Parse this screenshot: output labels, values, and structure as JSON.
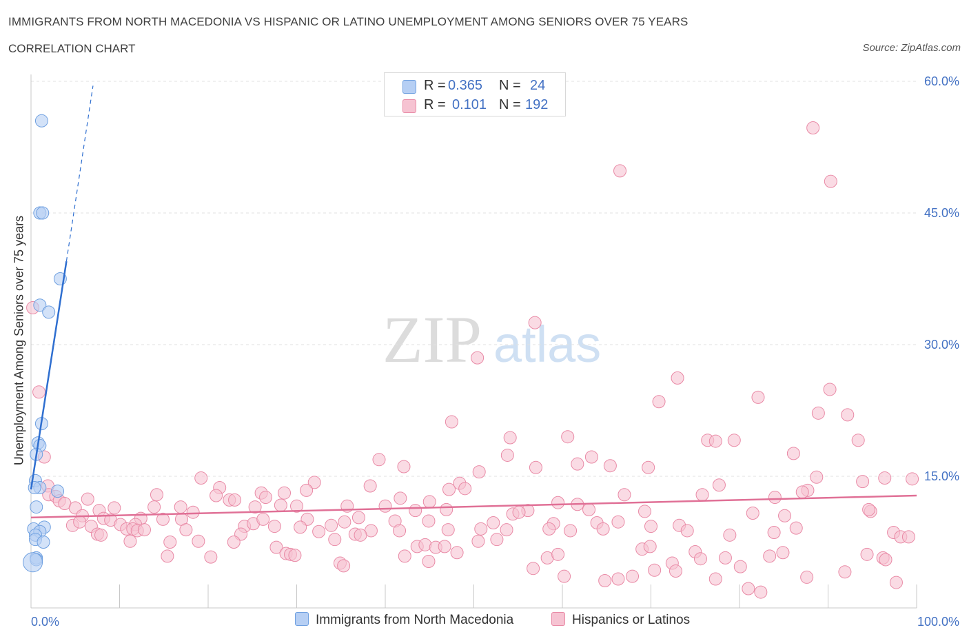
{
  "chart_data": {
    "type": "scatter",
    "title": "IMMIGRANTS FROM NORTH MACEDONIA VS HISPANIC OR LATINO UNEMPLOYMENT AMONG SENIORS OVER 75 YEARS",
    "subtitle": "CORRELATION CHART",
    "source": "Source: ZipAtlas.com",
    "xlabel": "",
    "ylabel": "Unemployment Among Seniors over 75 years",
    "xlim": [
      0,
      100
    ],
    "ylim": [
      0,
      60
    ],
    "x_tick_labels": [
      "0.0%",
      "100.0%"
    ],
    "y_ticks": [
      15,
      30,
      45,
      60
    ],
    "y_tick_labels": [
      "15.0%",
      "30.0%",
      "45.0%",
      "60.0%"
    ],
    "watermark": "ZIPatlas",
    "legend": {
      "rows": [
        {
          "r_label": "R = ",
          "r_value": "0.365",
          "n_label": "N = ",
          "n_value": "24"
        },
        {
          "r_label": "R = ",
          "r_value": "0.101",
          "n_label": "N = ",
          "n_value": "192"
        }
      ]
    },
    "series": [
      {
        "name": "Immigrants from North Macedonia",
        "color": "#6fa0e0",
        "fill": "#b6cff4",
        "trend": {
          "x0": 0.0,
          "y0": 13.5,
          "x1": 4.0,
          "y1": 39.5,
          "dash_x1": 7.0,
          "dash_y1": 59.5,
          "color": "#2f6fd0"
        },
        "points": [
          {
            "x": 1.2,
            "y": 55.5
          },
          {
            "x": 1.0,
            "y": 45.0
          },
          {
            "x": 1.3,
            "y": 45.0
          },
          {
            "x": 3.3,
            "y": 37.5
          },
          {
            "x": 1.0,
            "y": 34.5
          },
          {
            "x": 2.0,
            "y": 33.7
          },
          {
            "x": 1.2,
            "y": 21.0
          },
          {
            "x": 0.8,
            "y": 18.8
          },
          {
            "x": 1.0,
            "y": 18.5
          },
          {
            "x": 0.6,
            "y": 17.5
          },
          {
            "x": 0.5,
            "y": 14.5
          },
          {
            "x": 1.0,
            "y": 13.7
          },
          {
            "x": 3.0,
            "y": 13.3
          },
          {
            "x": 0.4,
            "y": 13.7
          },
          {
            "x": 0.6,
            "y": 11.5
          },
          {
            "x": 1.5,
            "y": 9.2
          },
          {
            "x": 0.3,
            "y": 9.0
          },
          {
            "x": 1.0,
            "y": 8.7
          },
          {
            "x": 0.5,
            "y": 8.3
          },
          {
            "x": 0.5,
            "y": 7.8
          },
          {
            "x": 1.4,
            "y": 7.5
          },
          {
            "x": 0.6,
            "y": 5.7
          },
          {
            "x": 0.6,
            "y": 5.5
          },
          {
            "x": 0.2,
            "y": 5.2,
            "big": true
          }
        ]
      },
      {
        "name": "Hispanics or Latinos",
        "color": "#e98aa6",
        "fill": "#f6c3d2",
        "trend": {
          "x0": 0.0,
          "y0": 10.3,
          "x1": 100.0,
          "y1": 12.8,
          "color": "#e07096"
        },
        "points": [
          {
            "x": 88.3,
            "y": 54.7
          },
          {
            "x": 66.5,
            "y": 49.8
          },
          {
            "x": 90.3,
            "y": 48.6
          },
          {
            "x": 56.9,
            "y": 32.5
          },
          {
            "x": 50.4,
            "y": 28.5
          },
          {
            "x": 73.0,
            "y": 26.2
          },
          {
            "x": 70.9,
            "y": 23.5
          },
          {
            "x": 82.1,
            "y": 24.0
          },
          {
            "x": 90.2,
            "y": 24.9
          },
          {
            "x": 88.9,
            "y": 22.2
          },
          {
            "x": 92.2,
            "y": 22.0
          },
          {
            "x": 47.5,
            "y": 21.2
          },
          {
            "x": 54.1,
            "y": 19.4
          },
          {
            "x": 60.6,
            "y": 19.5
          },
          {
            "x": 76.4,
            "y": 19.1
          },
          {
            "x": 79.4,
            "y": 19.1
          },
          {
            "x": 77.3,
            "y": 19.0
          },
          {
            "x": 93.4,
            "y": 19.1
          },
          {
            "x": 39.3,
            "y": 16.9
          },
          {
            "x": 42.1,
            "y": 16.1
          },
          {
            "x": 53.8,
            "y": 17.4
          },
          {
            "x": 57.0,
            "y": 16.0
          },
          {
            "x": 61.7,
            "y": 16.4
          },
          {
            "x": 63.3,
            "y": 17.2
          },
          {
            "x": 65.4,
            "y": 16.2
          },
          {
            "x": 69.7,
            "y": 16.0
          },
          {
            "x": 86.1,
            "y": 17.6
          },
          {
            "x": 50.6,
            "y": 15.5
          },
          {
            "x": 88.7,
            "y": 14.9
          },
          {
            "x": 93.9,
            "y": 14.4
          },
          {
            "x": 96.4,
            "y": 14.8
          },
          {
            "x": 99.5,
            "y": 14.7
          },
          {
            "x": 19.2,
            "y": 14.8
          },
          {
            "x": 21.3,
            "y": 13.7
          },
          {
            "x": 32.0,
            "y": 14.3
          },
          {
            "x": 38.3,
            "y": 13.9
          },
          {
            "x": 48.4,
            "y": 14.2
          },
          {
            "x": 49.0,
            "y": 13.6
          },
          {
            "x": 47.2,
            "y": 13.5
          },
          {
            "x": 77.7,
            "y": 14.0
          },
          {
            "x": 87.7,
            "y": 13.4
          },
          {
            "x": 87.1,
            "y": 13.2
          },
          {
            "x": 31.1,
            "y": 13.4
          },
          {
            "x": 20.9,
            "y": 12.8
          },
          {
            "x": 14.2,
            "y": 12.9
          },
          {
            "x": 26.0,
            "y": 13.1
          },
          {
            "x": 26.5,
            "y": 12.6
          },
          {
            "x": 28.6,
            "y": 13.1
          },
          {
            "x": 22.4,
            "y": 12.3
          },
          {
            "x": 23.0,
            "y": 12.3
          },
          {
            "x": 41.7,
            "y": 12.5
          },
          {
            "x": 45.0,
            "y": 12.1
          },
          {
            "x": 67.0,
            "y": 12.9
          },
          {
            "x": 75.8,
            "y": 12.9
          },
          {
            "x": 84.0,
            "y": 12.6
          },
          {
            "x": 59.5,
            "y": 12.0
          },
          {
            "x": 61.7,
            "y": 11.8
          },
          {
            "x": 0.2,
            "y": 34.2
          },
          {
            "x": 0.9,
            "y": 24.6
          },
          {
            "x": 1.5,
            "y": 17.2
          },
          {
            "x": 1.9,
            "y": 13.9
          },
          {
            "x": 2.0,
            "y": 12.9
          },
          {
            "x": 2.8,
            "y": 12.7
          },
          {
            "x": 3.2,
            "y": 12.2
          },
          {
            "x": 3.8,
            "y": 11.9
          },
          {
            "x": 5.0,
            "y": 11.4
          },
          {
            "x": 6.4,
            "y": 12.4
          },
          {
            "x": 9.4,
            "y": 11.4
          },
          {
            "x": 13.9,
            "y": 11.5
          },
          {
            "x": 16.9,
            "y": 11.5
          },
          {
            "x": 18.3,
            "y": 10.9
          },
          {
            "x": 25.3,
            "y": 11.5
          },
          {
            "x": 28.2,
            "y": 11.7
          },
          {
            "x": 30.0,
            "y": 11.6
          },
          {
            "x": 35.7,
            "y": 11.6
          },
          {
            "x": 40.0,
            "y": 11.6
          },
          {
            "x": 43.4,
            "y": 11.1
          },
          {
            "x": 46.9,
            "y": 11.2
          },
          {
            "x": 56.1,
            "y": 11.1
          },
          {
            "x": 63.0,
            "y": 11.2
          },
          {
            "x": 69.3,
            "y": 11.0
          },
          {
            "x": 81.5,
            "y": 10.8
          },
          {
            "x": 94.8,
            "y": 11.0
          },
          {
            "x": 94.6,
            "y": 11.2
          },
          {
            "x": 7.7,
            "y": 11.1
          },
          {
            "x": 12.4,
            "y": 10.2
          },
          {
            "x": 14.9,
            "y": 10.1
          },
          {
            "x": 17.0,
            "y": 10.1
          },
          {
            "x": 5.8,
            "y": 10.5
          },
          {
            "x": 8.2,
            "y": 10.2
          },
          {
            "x": 9.0,
            "y": 10.0
          },
          {
            "x": 11.8,
            "y": 9.5
          },
          {
            "x": 24.1,
            "y": 9.3
          },
          {
            "x": 25.1,
            "y": 9.6
          },
          {
            "x": 26.2,
            "y": 10.1
          },
          {
            "x": 31.2,
            "y": 10.1
          },
          {
            "x": 35.4,
            "y": 9.8
          },
          {
            "x": 37.0,
            "y": 10.3
          },
          {
            "x": 41.1,
            "y": 9.9
          },
          {
            "x": 44.9,
            "y": 9.9
          },
          {
            "x": 52.2,
            "y": 9.7
          },
          {
            "x": 54.4,
            "y": 10.7
          },
          {
            "x": 55.1,
            "y": 10.9
          },
          {
            "x": 59.0,
            "y": 9.6
          },
          {
            "x": 63.9,
            "y": 9.7
          },
          {
            "x": 66.3,
            "y": 9.8
          },
          {
            "x": 73.2,
            "y": 9.4
          },
          {
            "x": 85.1,
            "y": 10.5
          },
          {
            "x": 4.7,
            "y": 9.4
          },
          {
            "x": 5.5,
            "y": 9.8
          },
          {
            "x": 6.8,
            "y": 9.3
          },
          {
            "x": 10.1,
            "y": 9.5
          },
          {
            "x": 10.8,
            "y": 9.0
          },
          {
            "x": 11.5,
            "y": 9.0
          },
          {
            "x": 12.0,
            "y": 8.8
          },
          {
            "x": 12.8,
            "y": 8.9
          },
          {
            "x": 17.5,
            "y": 8.9
          },
          {
            "x": 23.7,
            "y": 8.4
          },
          {
            "x": 27.5,
            "y": 9.3
          },
          {
            "x": 30.4,
            "y": 9.2
          },
          {
            "x": 32.5,
            "y": 8.7
          },
          {
            "x": 33.9,
            "y": 9.4
          },
          {
            "x": 36.6,
            "y": 8.4
          },
          {
            "x": 38.4,
            "y": 8.8
          },
          {
            "x": 41.6,
            "y": 8.8
          },
          {
            "x": 47.1,
            "y": 8.9
          },
          {
            "x": 50.8,
            "y": 9.0
          },
          {
            "x": 53.7,
            "y": 8.9
          },
          {
            "x": 58.5,
            "y": 9.0
          },
          {
            "x": 60.9,
            "y": 8.8
          },
          {
            "x": 64.6,
            "y": 9.0
          },
          {
            "x": 70.0,
            "y": 9.3
          },
          {
            "x": 74.1,
            "y": 8.8
          },
          {
            "x": 83.9,
            "y": 8.6
          },
          {
            "x": 86.4,
            "y": 9.1
          },
          {
            "x": 97.4,
            "y": 8.6
          },
          {
            "x": 7.5,
            "y": 8.4
          },
          {
            "x": 7.9,
            "y": 8.3
          },
          {
            "x": 11.2,
            "y": 7.6
          },
          {
            "x": 15.7,
            "y": 7.5
          },
          {
            "x": 18.9,
            "y": 7.6
          },
          {
            "x": 22.9,
            "y": 7.5
          },
          {
            "x": 27.7,
            "y": 6.9
          },
          {
            "x": 34.3,
            "y": 7.8
          },
          {
            "x": 37.2,
            "y": 8.3
          },
          {
            "x": 43.6,
            "y": 7.0
          },
          {
            "x": 44.5,
            "y": 7.2
          },
          {
            "x": 45.7,
            "y": 6.9
          },
          {
            "x": 46.7,
            "y": 7.0
          },
          {
            "x": 48.1,
            "y": 6.3
          },
          {
            "x": 50.5,
            "y": 7.6
          },
          {
            "x": 52.6,
            "y": 7.8
          },
          {
            "x": 69.0,
            "y": 6.7
          },
          {
            "x": 69.9,
            "y": 7.0
          },
          {
            "x": 75.0,
            "y": 6.4
          },
          {
            "x": 78.9,
            "y": 8.3
          },
          {
            "x": 98.2,
            "y": 8.1
          },
          {
            "x": 99.1,
            "y": 8.1
          },
          {
            "x": 15.4,
            "y": 5.9
          },
          {
            "x": 20.3,
            "y": 5.8
          },
          {
            "x": 28.8,
            "y": 6.2
          },
          {
            "x": 29.3,
            "y": 6.1
          },
          {
            "x": 29.8,
            "y": 6.0
          },
          {
            "x": 42.2,
            "y": 5.9
          },
          {
            "x": 44.9,
            "y": 5.3
          },
          {
            "x": 58.3,
            "y": 5.7
          },
          {
            "x": 59.5,
            "y": 6.1
          },
          {
            "x": 72.4,
            "y": 5.1
          },
          {
            "x": 75.6,
            "y": 5.6
          },
          {
            "x": 78.4,
            "y": 5.7
          },
          {
            "x": 83.4,
            "y": 5.9
          },
          {
            "x": 84.9,
            "y": 6.3
          },
          {
            "x": 94.4,
            "y": 6.1
          },
          {
            "x": 96.2,
            "y": 5.7
          },
          {
            "x": 96.5,
            "y": 5.5
          },
          {
            "x": 34.9,
            "y": 5.1
          },
          {
            "x": 35.3,
            "y": 4.8
          },
          {
            "x": 56.7,
            "y": 4.5
          },
          {
            "x": 60.2,
            "y": 3.6
          },
          {
            "x": 64.8,
            "y": 3.1
          },
          {
            "x": 66.3,
            "y": 3.3
          },
          {
            "x": 67.9,
            "y": 3.6
          },
          {
            "x": 70.4,
            "y": 4.3
          },
          {
            "x": 72.8,
            "y": 4.2
          },
          {
            "x": 77.3,
            "y": 3.3
          },
          {
            "x": 80.1,
            "y": 4.7
          },
          {
            "x": 87.6,
            "y": 3.5
          },
          {
            "x": 91.9,
            "y": 4.1
          },
          {
            "x": 81.0,
            "y": 2.2
          },
          {
            "x": 82.4,
            "y": 1.8
          },
          {
            "x": 97.7,
            "y": 2.9
          }
        ]
      }
    ]
  }
}
